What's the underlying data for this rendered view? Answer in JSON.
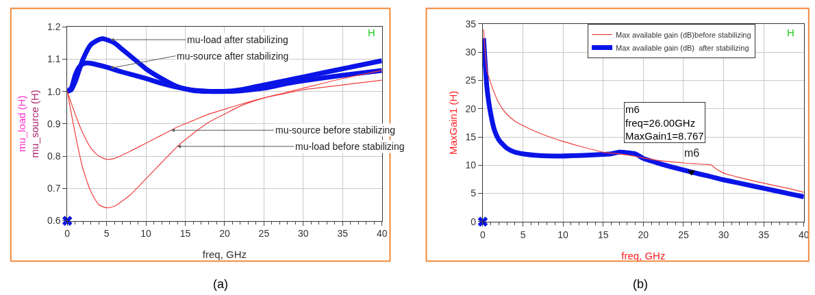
{
  "chart_data": [
    {
      "type": "line",
      "xlabel": "freq, GHz",
      "ylabel": "mu_load (H)\nmu_source (H)",
      "xlim": [
        0,
        40
      ],
      "xticks": [
        0,
        5,
        10,
        15,
        20,
        25,
        30,
        35,
        40
      ],
      "ylim": [
        0.6,
        1.2
      ],
      "yticks": [
        0.6,
        0.7,
        0.8,
        0.9,
        {
          "value": 1.0,
          "label": "1.0"
        },
        1.1,
        1.2
      ],
      "grid": true,
      "legend": false,
      "series": [
        {
          "color": "#0a14e6",
          "x": [
            0,
            0.5,
            1,
            2,
            3,
            4,
            4.5,
            5,
            6,
            7,
            8,
            9,
            10,
            12,
            14,
            16,
            18,
            20,
            22,
            25,
            28,
            30,
            35,
            40
          ],
          "values": [
            1.0,
            1.005,
            1.03,
            1.1,
            1.145,
            1.16,
            1.163,
            1.16,
            1.15,
            1.13,
            1.11,
            1.09,
            1.07,
            1.04,
            1.015,
            1.003,
            1.0,
            1.0,
            1.005,
            1.02,
            1.035,
            1.045,
            1.07,
            1.095
          ]
        },
        {
          "color": "#0a14e6",
          "x": [
            0,
            0.5,
            1,
            1.5,
            2,
            2.5,
            3,
            5,
            7,
            10,
            12,
            15,
            17,
            20,
            22,
            25,
            28,
            30,
            35,
            40
          ],
          "values": [
            1.0,
            1.01,
            1.05,
            1.075,
            1.085,
            1.088,
            1.087,
            1.075,
            1.06,
            1.04,
            1.025,
            1.008,
            1.002,
            1.0,
            1.002,
            1.01,
            1.025,
            1.033,
            1.05,
            1.065
          ]
        },
        {
          "color": "#f03c3c",
          "x": [
            0,
            1,
            2,
            3,
            4,
            5,
            6,
            8,
            10,
            12,
            14,
            16,
            18,
            20,
            22,
            25,
            28,
            30,
            35,
            40
          ],
          "values": [
            1.0,
            0.93,
            0.87,
            0.825,
            0.8,
            0.79,
            0.793,
            0.815,
            0.84,
            0.865,
            0.89,
            0.91,
            0.93,
            0.945,
            0.96,
            0.98,
            0.995,
            1.005,
            1.02,
            1.035
          ]
        },
        {
          "color": "#f03c3c",
          "x": [
            0,
            1,
            2,
            3,
            4,
            5,
            6,
            8,
            10,
            12,
            14,
            16,
            18,
            20,
            22,
            25,
            28,
            30,
            35,
            40
          ],
          "values": [
            1.0,
            0.87,
            0.76,
            0.69,
            0.65,
            0.64,
            0.645,
            0.68,
            0.73,
            0.78,
            0.83,
            0.87,
            0.905,
            0.93,
            0.955,
            0.98,
            0.998,
            1.01,
            1.04,
            1.065
          ]
        },
        {
          "type": "scatter",
          "marker": "cross",
          "color": "#0a14e6",
          "x": [
            0
          ],
          "values": [
            0.6
          ]
        }
      ],
      "annotations": [
        {
          "text": "mu-load after stabilizing",
          "x": 5.5,
          "y": 1.16
        },
        {
          "text": "mu-source after stabilizing",
          "x": 5.5,
          "y": 1.072
        },
        {
          "text": "mu-source before stabilizing",
          "x": 13.2,
          "y": 0.88
        },
        {
          "text": "mu-load before stabilizing",
          "x": 14,
          "y": 0.83
        },
        "H",
        "(a)"
      ]
    },
    {
      "type": "line",
      "xlabel": "freq, GHz",
      "ylabel": "MaxGain1 (H)",
      "xlim": [
        0,
        40
      ],
      "xticks": [
        0,
        5,
        10,
        15,
        20,
        25,
        30,
        35,
        40
      ],
      "ylim": [
        0,
        35
      ],
      "yticks": [
        0,
        5,
        10,
        15,
        20,
        25,
        30,
        35
      ],
      "grid": true,
      "legend": "top right",
      "series": [
        {
          "name": "Max available gain (dB)before stabilizing",
          "color": "#f03c3c",
          "x": [
            0.1,
            0.3,
            0.5,
            1,
            2,
            3,
            4,
            5,
            7,
            10,
            12,
            15,
            17,
            18,
            20,
            22,
            25,
            28,
            28.5,
            29,
            30,
            32,
            35,
            38,
            40
          ],
          "values": [
            34,
            30,
            27,
            24.5,
            21,
            19,
            17.8,
            17,
            15.7,
            14.2,
            13.4,
            12.3,
            12,
            11.8,
            11.3,
            10.8,
            10.4,
            10.1,
            10,
            9.4,
            8.6,
            7.8,
            6.8,
            5.9,
            5.2
          ]
        },
        {
          "name": "Max available gain (dB)  after stabilizing",
          "color": "#0a14e6",
          "x": [
            0.1,
            0.3,
            0.5,
            1,
            1.5,
            2,
            3,
            4,
            5,
            7,
            9,
            12,
            15,
            16,
            17,
            18,
            19,
            20,
            22,
            24,
            26,
            28,
            30,
            32,
            35,
            38,
            40
          ],
          "values": [
            32.5,
            28,
            24,
            19,
            16,
            14.5,
            13,
            12.3,
            12,
            11.7,
            11.6,
            11.7,
            11.9,
            12,
            12.3,
            12.2,
            12,
            11.2,
            10.3,
            9.5,
            8.767,
            8.1,
            7.4,
            6.8,
            5.9,
            5,
            4.4
          ]
        },
        {
          "type": "scatter",
          "marker": "cross",
          "color": "#0a14e6",
          "x": [
            0
          ],
          "values": [
            0
          ]
        }
      ],
      "annotations": [
        {
          "text": "m6",
          "x": 26,
          "y": 8.767
        },
        "m6\nfreq=26.00GHz\nMaxGain1=8.767",
        "H",
        "(b)"
      ]
    }
  ]
}
